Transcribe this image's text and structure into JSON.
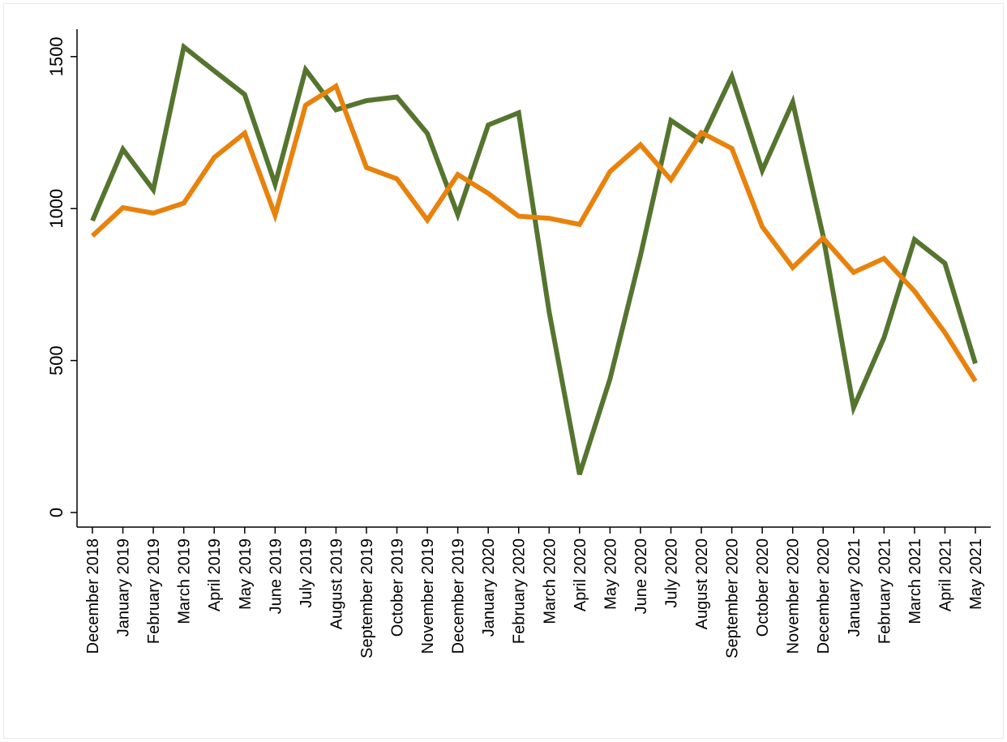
{
  "chart_data": {
    "type": "line",
    "categories": [
      "December 2018",
      "January 2019",
      "February 2019",
      "March 2019",
      "April 2019",
      "May 2019",
      "June 2019",
      "July 2019",
      "August 2019",
      "September 2019",
      "October 2019",
      "November 2019",
      "December 2019",
      "January 2020",
      "February 2020",
      "March 2020",
      "April 2020",
      "May 2020",
      "June 2020",
      "July 2020",
      "August 2020",
      "September 2020",
      "October 2020",
      "November 2020",
      "December 2020",
      "January 2021",
      "February 2021",
      "March 2021",
      "April 2021",
      "May 2021"
    ],
    "series": [
      {
        "color": "#55752f",
        "values": [
          960,
          1195,
          1062,
          1532,
          1453,
          1375,
          1080,
          1457,
          1325,
          1355,
          1367,
          1247,
          980,
          1275,
          1315,
          660,
          125,
          440,
          845,
          1290,
          1223,
          1435,
          1125,
          1350,
          910,
          345,
          575,
          898,
          820,
          490
        ]
      },
      {
        "color": "#e8820c",
        "values": [
          910,
          1003,
          985,
          1018,
          1168,
          1248,
          978,
          1340,
          1403,
          1135,
          1098,
          962,
          1112,
          1050,
          975,
          968,
          948,
          1122,
          1210,
          1095,
          1250,
          1198,
          940,
          806,
          903,
          790,
          836,
          728,
          592,
          432
        ]
      }
    ],
    "yticks": [
      0,
      500,
      1000,
      1500
    ],
    "ylim": [
      0,
      1585
    ],
    "grid": false
  }
}
